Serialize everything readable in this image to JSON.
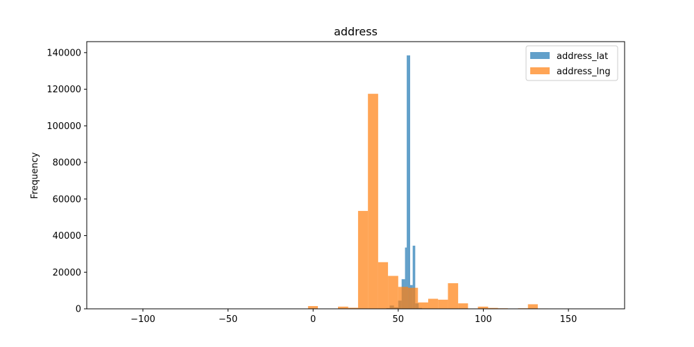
{
  "chart_data": {
    "type": "bar",
    "title": "address",
    "xlabel": "",
    "ylabel": "Frequency",
    "xlim": [
      -133,
      183
    ],
    "ylim": [
      0,
      146000
    ],
    "xticks": [
      -100,
      -50,
      0,
      50,
      100,
      150
    ],
    "xtick_labels": [
      "−100",
      "−50",
      "0",
      "50",
      "100",
      "150"
    ],
    "yticks": [
      0,
      20000,
      40000,
      60000,
      80000,
      100000,
      120000,
      140000
    ],
    "ytick_labels": [
      "0",
      "20000",
      "40000",
      "60000",
      "80000",
      "100000",
      "120000",
      "140000"
    ],
    "grid": false,
    "legend_position": "top-right",
    "series": [
      {
        "name": "address_lat",
        "color": "#1f77b4",
        "alpha": 0.7,
        "bins": [
          {
            "x0": -119.0,
            "x1": 43.0,
            "value": 0
          },
          {
            "x0": 43.0,
            "x1": 45.0,
            "value": 400
          },
          {
            "x0": 45.0,
            "x1": 47.5,
            "value": 1800
          },
          {
            "x0": 47.5,
            "x1": 50.0,
            "value": 800
          },
          {
            "x0": 50.0,
            "x1": 52.0,
            "value": 4500
          },
          {
            "x0": 52.0,
            "x1": 54.0,
            "value": 16200
          },
          {
            "x0": 54.0,
            "x1": 55.0,
            "value": 33500
          },
          {
            "x0": 55.0,
            "x1": 57.0,
            "value": 138500
          },
          {
            "x0": 57.0,
            "x1": 58.5,
            "value": 13000
          },
          {
            "x0": 58.5,
            "x1": 60.0,
            "value": 34500
          },
          {
            "x0": 60.0,
            "x1": 62.0,
            "value": 3000
          },
          {
            "x0": 62.0,
            "x1": 64.0,
            "value": 500
          }
        ]
      },
      {
        "name": "address_lng",
        "color": "#ff7f0e",
        "alpha": 0.7,
        "bins": [
          {
            "x0": -119.0,
            "x1": -3.0,
            "value": 0
          },
          {
            "x0": -3.0,
            "x1": 2.8,
            "value": 1500
          },
          {
            "x0": 14.6,
            "x1": 20.6,
            "value": 1200
          },
          {
            "x0": 20.6,
            "x1": 26.4,
            "value": 600
          },
          {
            "x0": 26.4,
            "x1": 32.2,
            "value": 53500
          },
          {
            "x0": 32.2,
            "x1": 38.2,
            "value": 117500
          },
          {
            "x0": 38.2,
            "x1": 44.0,
            "value": 25500
          },
          {
            "x0": 44.0,
            "x1": 50.0,
            "value": 18000
          },
          {
            "x0": 50.0,
            "x1": 55.8,
            "value": 12000
          },
          {
            "x0": 55.8,
            "x1": 61.6,
            "value": 11500
          },
          {
            "x0": 61.6,
            "x1": 67.6,
            "value": 3500
          },
          {
            "x0": 67.6,
            "x1": 73.4,
            "value": 5500
          },
          {
            "x0": 73.4,
            "x1": 79.2,
            "value": 5000
          },
          {
            "x0": 79.2,
            "x1": 85.2,
            "value": 14000
          },
          {
            "x0": 85.2,
            "x1": 91.0,
            "value": 3000
          },
          {
            "x0": 91.0,
            "x1": 96.8,
            "value": 200
          },
          {
            "x0": 96.8,
            "x1": 102.8,
            "value": 1200
          },
          {
            "x0": 102.8,
            "x1": 108.6,
            "value": 500
          },
          {
            "x0": 108.6,
            "x1": 114.4,
            "value": 300
          },
          {
            "x0": 114.4,
            "x1": 120.4,
            "value": 100
          },
          {
            "x0": 120.4,
            "x1": 126.2,
            "value": 300
          },
          {
            "x0": 126.2,
            "x1": 132.0,
            "value": 2500
          },
          {
            "x0": 132.0,
            "x1": 138.0,
            "value": 200
          }
        ]
      }
    ]
  }
}
